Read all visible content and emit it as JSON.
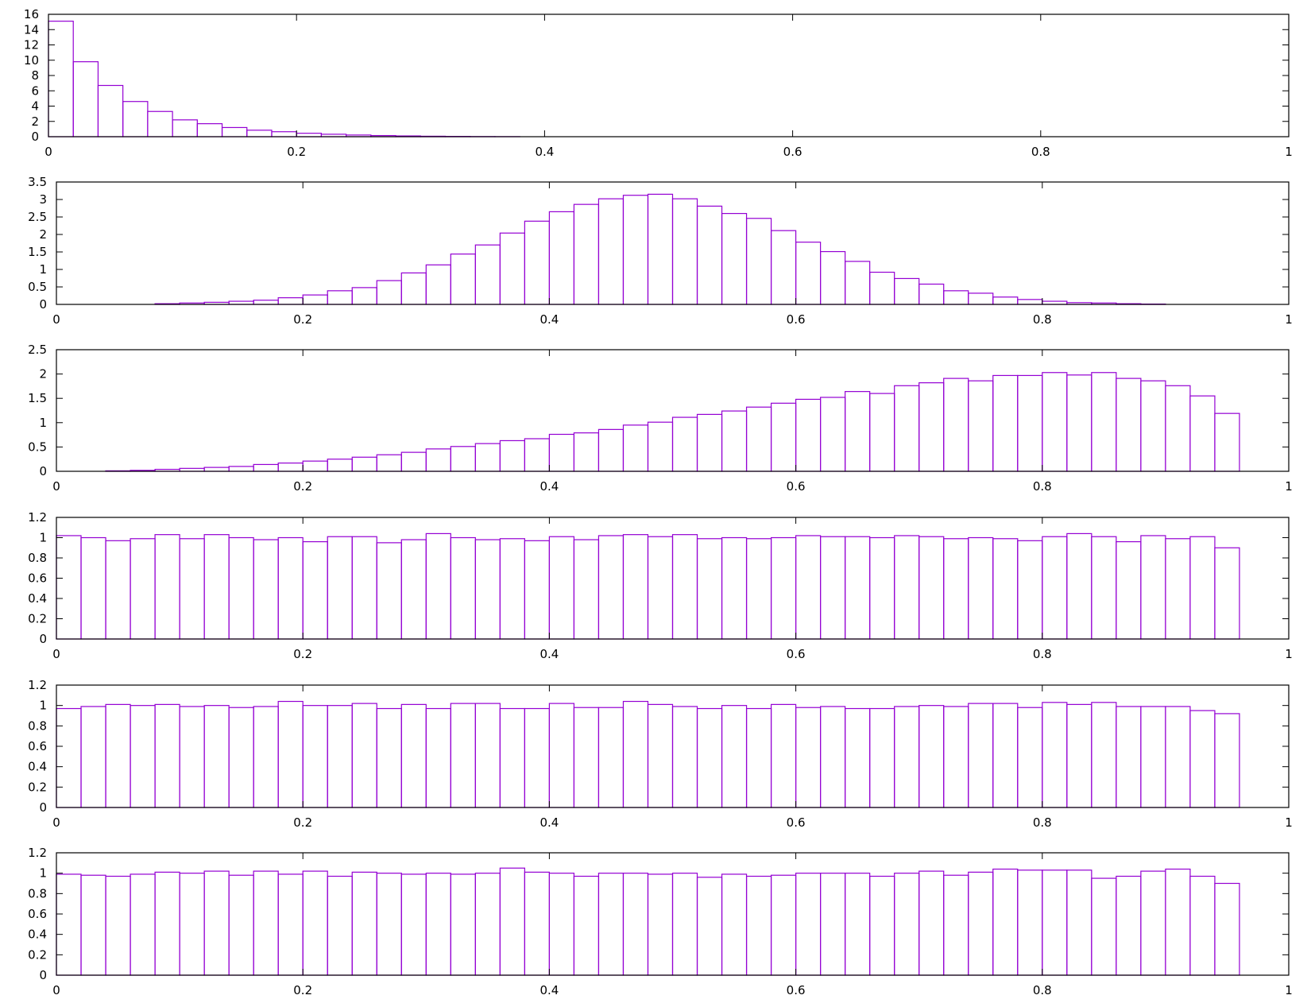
{
  "colors": {
    "bar_stroke": "#9400d3",
    "axis": "#000000",
    "background": "#ffffff"
  },
  "chart_data": [
    {
      "type": "bar",
      "xlim": [
        0,
        1
      ],
      "ylim": [
        0,
        16
      ],
      "bin_width": 0.02,
      "xticks": [
        "0",
        "0.2",
        "0.4",
        "0.6",
        "0.8",
        "1"
      ],
      "xtick_values": [
        0,
        0.2,
        0.4,
        0.6,
        0.8,
        1
      ],
      "yticks": [
        "0",
        "2",
        "4",
        "6",
        "8",
        "10",
        "12",
        "14",
        "16"
      ],
      "ytick_values": [
        0,
        2,
        4,
        6,
        8,
        10,
        12,
        14,
        16
      ],
      "values": [
        15.1,
        9.8,
        6.7,
        4.6,
        3.3,
        2.2,
        1.7,
        1.2,
        0.85,
        0.65,
        0.45,
        0.32,
        0.22,
        0.15,
        0.1,
        0.06,
        0.04,
        0.02,
        0.01,
        0,
        0,
        0,
        0,
        0,
        0,
        0,
        0,
        0,
        0,
        0,
        0,
        0,
        0,
        0,
        0,
        0,
        0,
        0,
        0,
        0,
        0,
        0,
        0,
        0,
        0,
        0,
        0,
        0,
        0,
        0
      ]
    },
    {
      "type": "bar",
      "xlim": [
        0,
        1
      ],
      "ylim": [
        0,
        3.5
      ],
      "bin_width": 0.02,
      "xticks": [
        "0",
        "0.2",
        "0.4",
        "0.6",
        "0.8",
        "1"
      ],
      "xtick_values": [
        0,
        0.2,
        0.4,
        0.6,
        0.8,
        1
      ],
      "yticks": [
        "0",
        "0.5",
        "1",
        "1.5",
        "2",
        "2.5",
        "3",
        "3.5"
      ],
      "ytick_values": [
        0,
        0.5,
        1,
        1.5,
        2,
        2.5,
        3,
        3.5
      ],
      "values": [
        0,
        0,
        0,
        0,
        0.02,
        0.04,
        0.06,
        0.09,
        0.12,
        0.19,
        0.27,
        0.39,
        0.48,
        0.68,
        0.9,
        1.13,
        1.44,
        1.7,
        2.04,
        2.38,
        2.65,
        2.86,
        3.02,
        3.12,
        3.15,
        3.02,
        2.81,
        2.6,
        2.46,
        2.11,
        1.78,
        1.51,
        1.23,
        0.92,
        0.74,
        0.58,
        0.39,
        0.32,
        0.21,
        0.14,
        0.09,
        0.05,
        0.04,
        0.02,
        0.01,
        0,
        0,
        0,
        0,
        0
      ]
    },
    {
      "type": "bar",
      "xlim": [
        0,
        1
      ],
      "ylim": [
        0,
        2.5
      ],
      "bin_width": 0.02,
      "xticks": [
        "0",
        "0.2",
        "0.4",
        "0.6",
        "0.8",
        "1"
      ],
      "xtick_values": [
        0,
        0.2,
        0.4,
        0.6,
        0.8,
        1
      ],
      "yticks": [
        "0",
        "0.5",
        "1",
        "1.5",
        "2",
        "2.5"
      ],
      "ytick_values": [
        0,
        0.5,
        1,
        1.5,
        2,
        2.5
      ],
      "values": [
        0,
        0,
        0.01,
        0.02,
        0.04,
        0.06,
        0.08,
        0.1,
        0.14,
        0.17,
        0.21,
        0.25,
        0.29,
        0.34,
        0.39,
        0.46,
        0.51,
        0.57,
        0.63,
        0.67,
        0.76,
        0.79,
        0.86,
        0.95,
        1.01,
        1.11,
        1.17,
        1.24,
        1.32,
        1.4,
        1.48,
        1.52,
        1.64,
        1.6,
        1.76,
        1.82,
        1.91,
        1.86,
        1.97,
        1.97,
        2.03,
        1.98,
        2.03,
        1.91,
        1.86,
        1.76,
        1.55,
        1.19,
        0,
        0
      ]
    },
    {
      "type": "bar",
      "xlim": [
        0,
        1
      ],
      "ylim": [
        0,
        1.2
      ],
      "bin_width": 0.02,
      "xticks": [
        "0",
        "0.2",
        "0.4",
        "0.6",
        "0.8",
        "1"
      ],
      "xtick_values": [
        0,
        0.2,
        0.4,
        0.6,
        0.8,
        1
      ],
      "yticks": [
        "0",
        "0.2",
        "0.4",
        "0.6",
        "0.8",
        "1",
        "1.2"
      ],
      "ytick_values": [
        0,
        0.2,
        0.4,
        0.6,
        0.8,
        1,
        1.2
      ],
      "values": [
        1.02,
        1.0,
        0.97,
        0.99,
        1.03,
        0.99,
        1.03,
        1.0,
        0.98,
        1.0,
        0.96,
        1.01,
        1.01,
        0.95,
        0.98,
        1.04,
        1.0,
        0.98,
        0.99,
        0.97,
        1.01,
        0.98,
        1.02,
        1.03,
        1.01,
        1.03,
        0.99,
        1.0,
        0.99,
        1.0,
        1.02,
        1.01,
        1.01,
        1.0,
        1.02,
        1.01,
        0.99,
        1.0,
        0.99,
        0.97,
        1.01,
        1.04,
        1.01,
        0.96,
        1.02,
        0.99,
        1.01,
        0.9,
        0,
        0
      ]
    },
    {
      "type": "bar",
      "xlim": [
        0,
        1
      ],
      "ylim": [
        0,
        1.2
      ],
      "bin_width": 0.02,
      "xticks": [
        "0",
        "0.2",
        "0.4",
        "0.6",
        "0.8",
        "1"
      ],
      "xtick_values": [
        0,
        0.2,
        0.4,
        0.6,
        0.8,
        1
      ],
      "yticks": [
        "0",
        "0.2",
        "0.4",
        "0.6",
        "0.8",
        "1",
        "1.2"
      ],
      "ytick_values": [
        0,
        0.2,
        0.4,
        0.6,
        0.8,
        1,
        1.2
      ],
      "values": [
        0.97,
        0.99,
        1.01,
        1.0,
        1.01,
        0.99,
        1.0,
        0.98,
        0.99,
        1.04,
        1.0,
        1.0,
        1.02,
        0.97,
        1.01,
        0.97,
        1.02,
        1.02,
        0.97,
        0.97,
        1.02,
        0.98,
        0.98,
        1.04,
        1.01,
        0.99,
        0.97,
        1.0,
        0.97,
        1.01,
        0.98,
        0.99,
        0.97,
        0.97,
        0.99,
        1.0,
        0.99,
        1.02,
        1.02,
        0.98,
        1.03,
        1.01,
        1.03,
        0.99,
        0.99,
        0.99,
        0.95,
        0.92,
        0,
        0
      ]
    },
    {
      "type": "bar",
      "xlim": [
        0,
        1
      ],
      "ylim": [
        0,
        1.2
      ],
      "bin_width": 0.02,
      "xticks": [
        "0",
        "0.2",
        "0.4",
        "0.6",
        "0.8",
        "1"
      ],
      "xtick_values": [
        0,
        0.2,
        0.4,
        0.6,
        0.8,
        1
      ],
      "yticks": [
        "0",
        "0.2",
        "0.4",
        "0.6",
        "0.8",
        "1",
        "1.2"
      ],
      "ytick_values": [
        0,
        0.2,
        0.4,
        0.6,
        0.8,
        1,
        1.2
      ],
      "values": [
        0.99,
        0.98,
        0.97,
        0.99,
        1.01,
        1.0,
        1.02,
        0.98,
        1.02,
        0.99,
        1.02,
        0.97,
        1.01,
        1.0,
        0.99,
        1.0,
        0.99,
        1.0,
        1.05,
        1.01,
        1.0,
        0.97,
        1.0,
        1.0,
        0.99,
        1.0,
        0.96,
        0.99,
        0.97,
        0.98,
        1.0,
        1.0,
        1.0,
        0.97,
        1.0,
        1.02,
        0.98,
        1.01,
        1.04,
        1.03,
        1.03,
        1.03,
        0.95,
        0.97,
        1.02,
        1.04,
        0.97,
        0.9,
        0,
        0
      ]
    }
  ]
}
